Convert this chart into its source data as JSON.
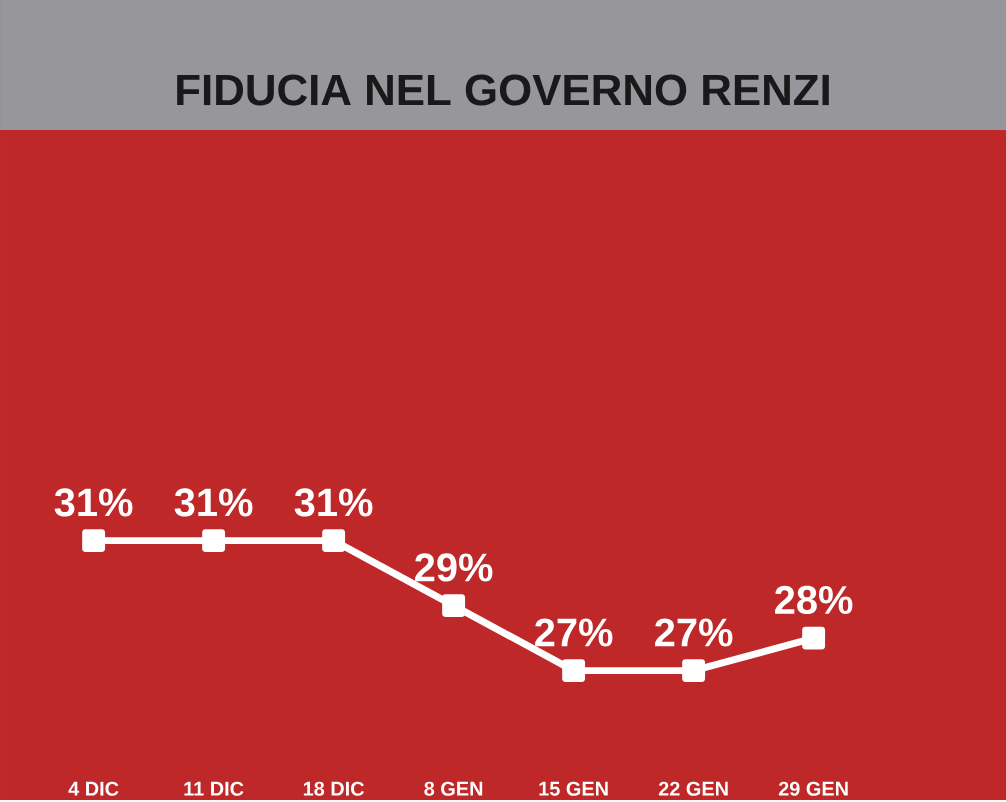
{
  "chart_data": {
    "type": "line",
    "title": "FIDUCIA NEL GOVERNO RENZI",
    "categories": [
      "4 DIC",
      "11 DIC",
      "18 DIC",
      "8 GEN",
      "15 GEN",
      "22 GEN",
      "29 GEN"
    ],
    "series": [
      {
        "color": "#ffffff",
        "values": [
          31,
          31,
          31,
          29,
          27,
          27,
          28
        ],
        "value_labels": [
          "31%",
          "31%",
          "31%",
          "29%",
          "27%",
          "27%",
          "28%"
        ]
      }
    ],
    "marker": "square",
    "line_style": "solid"
  }
}
